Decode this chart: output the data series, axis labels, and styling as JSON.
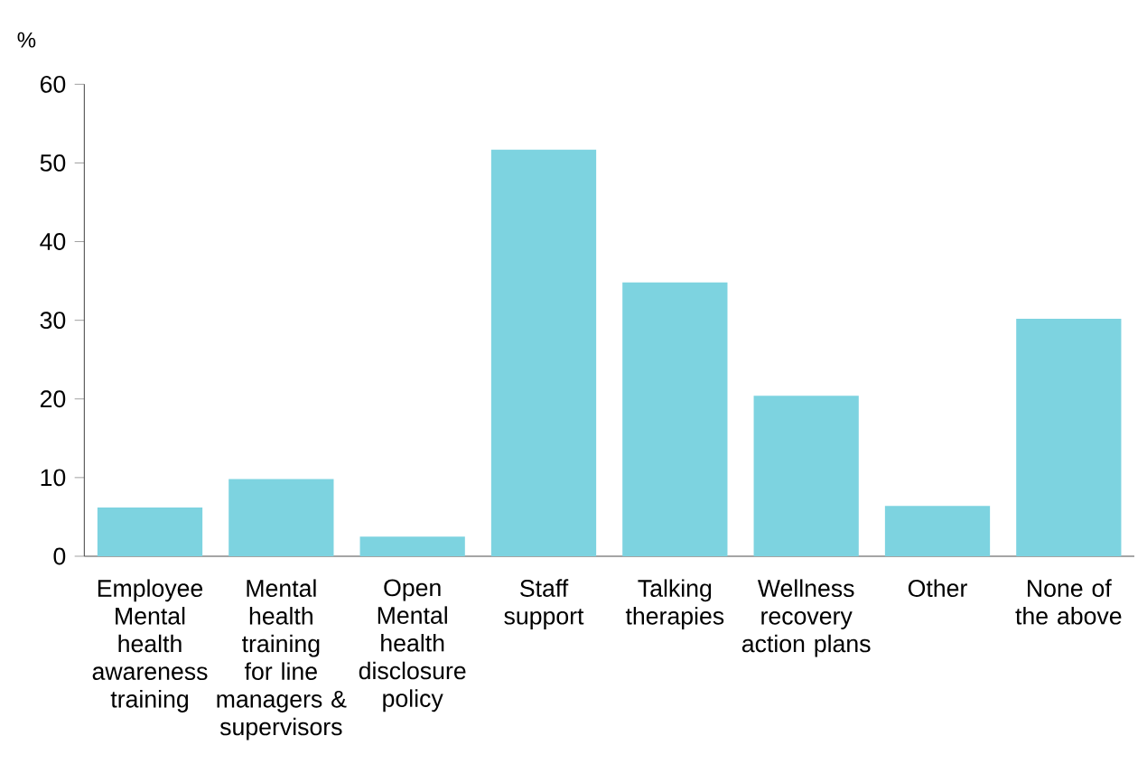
{
  "chart_data": {
    "type": "bar",
    "ylabel": "%",
    "categories": [
      "Employee Mental health awareness training",
      "Mental health training for line managers & supervisors",
      "Open Mental health disclosure policy",
      "Staff support",
      "Talking therapies",
      "Wellness recovery action plans",
      "Other",
      "None of the above"
    ],
    "values": [
      6.2,
      9.8,
      2.5,
      51.7,
      34.8,
      20.4,
      6.4,
      30.2
    ],
    "color": "#7dd3e0",
    "ylim": [
      0,
      60
    ],
    "yticks": [
      0,
      10,
      20,
      30,
      40,
      50,
      60
    ]
  }
}
